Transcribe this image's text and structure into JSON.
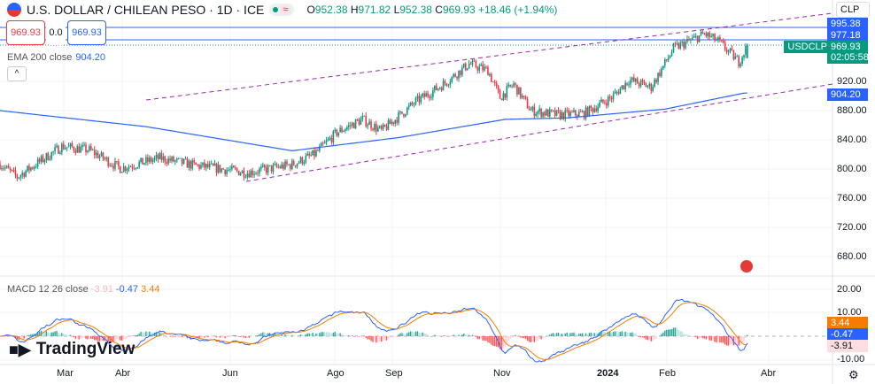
{
  "header": {
    "title": "U.S. DOLLAR / CHILEAN PESO · 1D · ICE",
    "open_label": "O",
    "open": "952.38",
    "high_label": "H",
    "high": "971.82",
    "low_label": "L",
    "low": "952.38",
    "close_label": "C",
    "close": "969.93",
    "change": "+18.46 (+1.94%)",
    "wave_symbol": "≈"
  },
  "trade": {
    "sell": "969.93",
    "spread": "0.0",
    "buy": "969.93"
  },
  "ema": {
    "label": "EMA 200 close",
    "value": "904.20"
  },
  "collapse_symbol": "^",
  "currency": {
    "selected": "CLP",
    "chevron": "⌄"
  },
  "price_tags": {
    "high_line": "995.38",
    "line2": "977.18",
    "symbol": "USDCLP",
    "last": "969.93",
    "countdown": "02:05:58",
    "ema": "904.20"
  },
  "price_axis": [
    "920.00",
    "880.00",
    "840.00",
    "800.00",
    "760.00",
    "720.00",
    "680.00"
  ],
  "macd": {
    "label": "MACD 12 26 close",
    "hist": "-3.91",
    "macd": "-0.47",
    "signal": "3.44",
    "axis": [
      "20.00",
      "10.00",
      "-10.00"
    ]
  },
  "time_axis": [
    "Mar",
    "Abr",
    "Jun",
    "Ago",
    "Sep",
    "Nov",
    "2024",
    "Feb",
    "Abr"
  ],
  "logo": "TradingView",
  "colors": {
    "up": "#089981",
    "down": "#f23645",
    "ema": "#2962ff",
    "signal": "#f57c00",
    "trend": "#9c27b0"
  },
  "chart_data": {
    "type": "candlestick",
    "ylim": [
      660,
      1005
    ],
    "anchors_day_price": [
      [
        0,
        807
      ],
      [
        10,
        789
      ],
      [
        36,
        831
      ],
      [
        52,
        826
      ],
      [
        70,
        801
      ],
      [
        93,
        815
      ],
      [
        113,
        805
      ],
      [
        144,
        795
      ],
      [
        170,
        806
      ],
      [
        183,
        820
      ],
      [
        196,
        850
      ],
      [
        211,
        868
      ],
      [
        222,
        852
      ],
      [
        242,
        892
      ],
      [
        258,
        916
      ],
      [
        273,
        944
      ],
      [
        284,
        935
      ],
      [
        291,
        898
      ],
      [
        299,
        916
      ],
      [
        309,
        880
      ],
      [
        325,
        874
      ],
      [
        340,
        876
      ],
      [
        356,
        898
      ],
      [
        366,
        922
      ],
      [
        379,
        912
      ],
      [
        392,
        965
      ],
      [
        410,
        985
      ],
      [
        418,
        975
      ],
      [
        430,
        947
      ],
      [
        435,
        969
      ]
    ],
    "ema_anchors_day_price": [
      [
        0,
        880
      ],
      [
        85,
        858
      ],
      [
        170,
        825
      ],
      [
        232,
        843
      ],
      [
        294,
        868
      ],
      [
        330,
        870
      ],
      [
        387,
        882
      ],
      [
        433,
        904
      ]
    ],
    "levels": [
      995.38,
      977.18,
      969.93
    ],
    "macd_ylim": [
      -14,
      25
    ]
  }
}
